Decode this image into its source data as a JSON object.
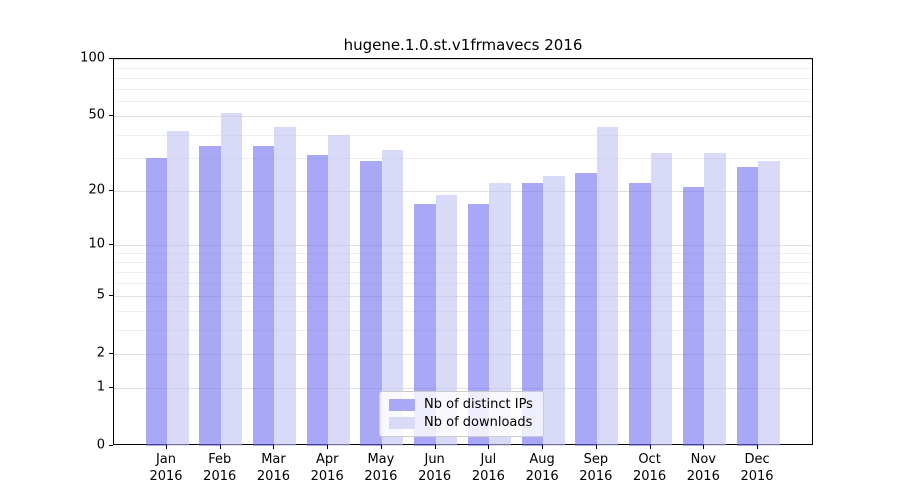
{
  "title": "hugene.1.0.st.v1frmavecs 2016",
  "legend": {
    "items": [
      {
        "label": "Nb of distinct IPs",
        "color": "#a8a8f6"
      },
      {
        "label": "Nb of downloads",
        "color": "#d9d9f8"
      }
    ]
  },
  "chart_data": {
    "type": "bar",
    "title": "hugene.1.0.st.v1frmavecs 2016",
    "categories": [
      "Jan 2016",
      "Feb 2016",
      "Mar 2016",
      "Apr 2016",
      "May 2016",
      "Jun 2016",
      "Jul 2016",
      "Aug 2016",
      "Sep 2016",
      "Oct 2016",
      "Nov 2016",
      "Dec 2016"
    ],
    "series": [
      {
        "name": "Nb of distinct IPs",
        "color": "#a8a8f6",
        "values": [
          30,
          35,
          35,
          31,
          29,
          17,
          17,
          22,
          25,
          22,
          21,
          27
        ]
      },
      {
        "name": "Nb of downloads",
        "color": "#d9d9f8",
        "values": [
          42,
          52,
          44,
          40,
          33,
          19,
          22,
          24,
          44,
          32,
          32,
          29
        ]
      }
    ],
    "xlabel": "",
    "ylabel": "",
    "y_axis": {
      "scale": "log10(1+value)",
      "ticks": [
        0,
        1,
        2,
        5,
        10,
        20,
        50,
        100
      ],
      "minor_gridlines": [
        3,
        4,
        6,
        7,
        8,
        9,
        30,
        40,
        60,
        70,
        80,
        90
      ],
      "top_value": 110
    },
    "grid": "horizontal",
    "legend_position": "inside-bottom-center",
    "colors": {
      "gridline_major": "#e0e0e0",
      "gridline_minor": "#eeeeee",
      "frame": "#000000"
    }
  }
}
